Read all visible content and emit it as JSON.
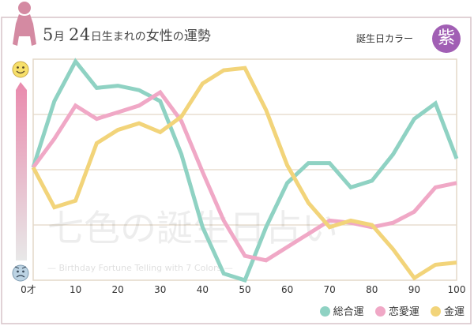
{
  "header": {
    "title_month_num": "5",
    "title_month_unit": "月",
    "title_day_num": "24",
    "title_day_unit": "日生まれの",
    "title_subject": "女性",
    "title_particle": "の",
    "title_topic": "運勢",
    "birth_color_label": "誕生日カラー",
    "birth_color_badge": "紫",
    "birth_color_hex": "#a15fb4"
  },
  "watermark": {
    "logo_text": "七色の誕生日占い",
    "tagline": "— Birthday Fortune Telling with 7 Colors —"
  },
  "icons": {
    "top": "smiley-face-icon",
    "bottom": "worried-face-icon",
    "decor": "woman-silhouette-icon"
  },
  "colors": {
    "frame": "#d7c3c9",
    "grid": "#e4d8c8",
    "overall": "#8fd2c3",
    "love": "#f0a8c6",
    "money": "#f2d47a",
    "scale_bar_top": "#e98aad"
  },
  "chart_data": {
    "type": "line",
    "title": "",
    "xlabel": "",
    "ylabel": "",
    "x": [
      0,
      5,
      10,
      15,
      20,
      25,
      30,
      35,
      40,
      45,
      50,
      55,
      60,
      65,
      70,
      75,
      80,
      85,
      90,
      95,
      100
    ],
    "xlim": [
      0,
      100
    ],
    "ylim": [
      0,
      100
    ],
    "x_ticks": [
      0,
      10,
      20,
      30,
      40,
      50,
      60,
      70,
      80,
      90,
      100
    ],
    "x_tick_labels": [
      "0才",
      "10",
      "20",
      "30",
      "40",
      "50",
      "60",
      "70",
      "80",
      "90",
      "100"
    ],
    "grid": "horizontal",
    "legend_position": "bottom-right",
    "series": [
      {
        "name": "総合運",
        "color": "#8fd2c3",
        "values": [
          51,
          81,
          99,
          87,
          88,
          86,
          81,
          57,
          24,
          3,
          0,
          24,
          44,
          53,
          53,
          42,
          45,
          57,
          73,
          80,
          55
        ]
      },
      {
        "name": "恋愛運",
        "color": "#f0a8c6",
        "values": [
          51,
          64,
          79,
          73,
          76,
          79,
          85,
          72,
          49,
          27,
          11,
          9,
          15,
          21,
          27,
          26,
          24,
          26,
          31,
          42,
          44
        ]
      },
      {
        "name": "金運",
        "color": "#f2d47a",
        "values": [
          51,
          33,
          36,
          62,
          68,
          71,
          67,
          74,
          89,
          95,
          96,
          77,
          52,
          35,
          24,
          27,
          25,
          14,
          1,
          7,
          8
        ]
      }
    ]
  }
}
